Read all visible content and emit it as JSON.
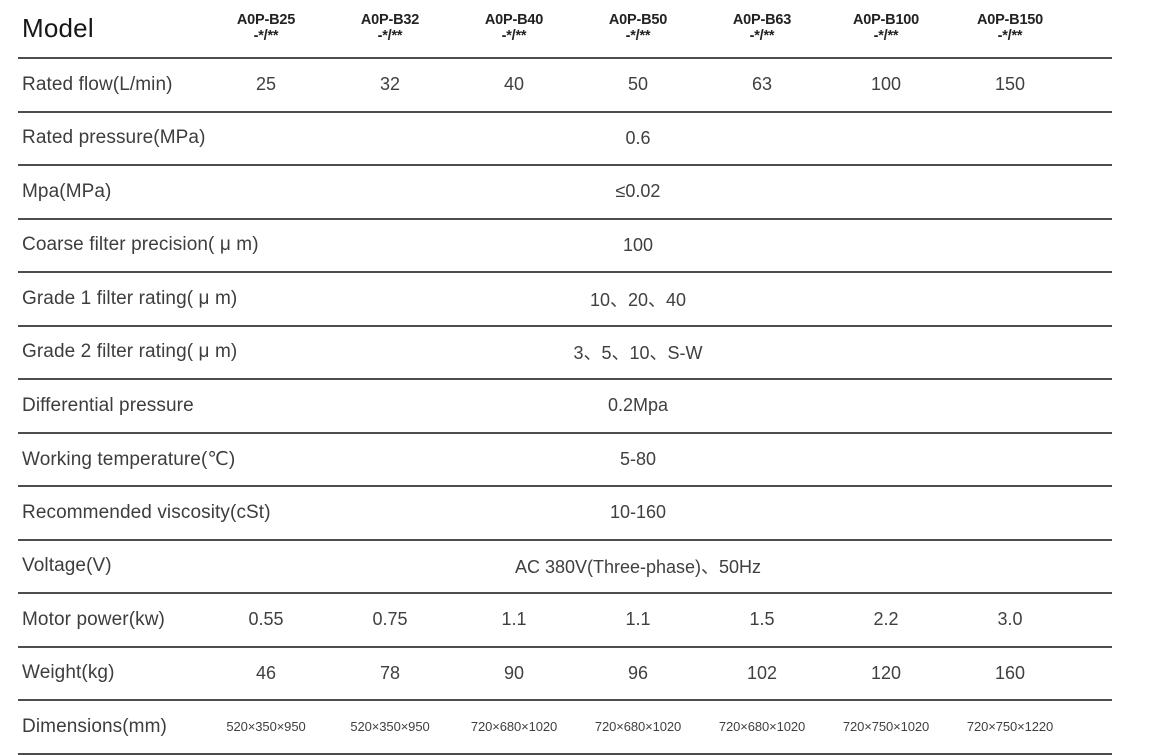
{
  "page": {
    "background": "#ffffff",
    "line_color": "#4d4d4d",
    "text_color": "#3d3d3d"
  },
  "table": {
    "header": {
      "label": "Model",
      "models": [
        {
          "name": "A0P-B25",
          "suffix": "-*/**"
        },
        {
          "name": "A0P-B32",
          "suffix": "-*/**"
        },
        {
          "name": "A0P-B40",
          "suffix": "-*/**"
        },
        {
          "name": "A0P-B50",
          "suffix": "-*/**"
        },
        {
          "name": "A0P-B63",
          "suffix": "-*/**"
        },
        {
          "name": "A0P-B100",
          "suffix": "-*/**"
        },
        {
          "name": "A0P-B150",
          "suffix": "-*/**"
        }
      ]
    },
    "rows": [
      {
        "label": "Rated flow(L/min)",
        "type": "per-column",
        "values": [
          "25",
          "32",
          "40",
          "50",
          "63",
          "100",
          "150"
        ]
      },
      {
        "label": "Rated pressure(MPa)",
        "type": "span",
        "value": "0.6"
      },
      {
        "label": "Mpa(MPa)",
        "type": "span",
        "value": "≤0.02"
      },
      {
        "label": "Coarse filter precision( μ m)",
        "type": "span",
        "value": "100"
      },
      {
        "label": "Grade 1 filter rating( μ m)",
        "type": "span",
        "value": "10、20、40"
      },
      {
        "label": "Grade 2 filter rating( μ m)",
        "type": "span",
        "value": "3、5、10、S-W"
      },
      {
        "label": "Differential pressure",
        "type": "span",
        "value": "0.2Mpa"
      },
      {
        "label": "Working temperature(℃)",
        "type": "span",
        "value": "5-80"
      },
      {
        "label": "Recommended viscosity(cSt)",
        "type": "span",
        "value": "10-160"
      },
      {
        "label": "Voltage(V)",
        "type": "span",
        "value": "AC 380V(Three-phase)、50Hz"
      },
      {
        "label": "Motor power(kw)",
        "type": "per-column",
        "values": [
          "0.55",
          "0.75",
          "1.1",
          "1.1",
          "1.5",
          "2.2",
          "3.0"
        ]
      },
      {
        "label": "Weight(kg)",
        "type": "per-column",
        "values": [
          "46",
          "78",
          "90",
          "96",
          "102",
          "120",
          "160"
        ]
      },
      {
        "label": "Dimensions(mm)",
        "type": "per-column",
        "values": [
          "520×350×950",
          "520×350×950",
          "720×680×1020",
          "720×680×1020",
          "720×680×1020",
          "720×750×1020",
          "720×750×1220"
        ]
      }
    ]
  }
}
